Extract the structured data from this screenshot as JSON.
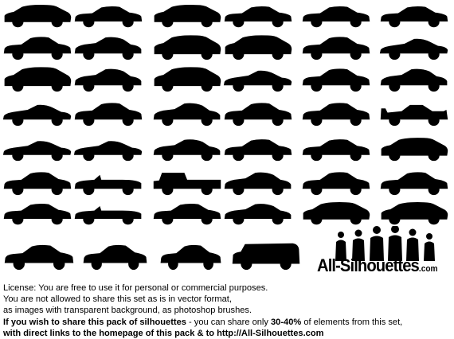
{
  "colors": {
    "silhouette": "#000000",
    "background": "#ffffff"
  },
  "silhouettes": {
    "subject": "car silhouettes",
    "rows": [
      [
        "hatchback-icon",
        "sedan-icon",
        "hatchback-icon",
        "sedan-icon",
        "sedan-icon",
        "sedan-icon"
      ],
      [
        "sedan-icon",
        "coupe-icon",
        "hatchback-icon",
        "hatchback-icon",
        "sedan-icon",
        "sports-car-icon"
      ],
      [
        "hatchback-icon",
        "coupe-icon",
        "hatchback-icon",
        "sports-car-icon",
        "sedan-icon",
        "coupe-icon"
      ],
      [
        "sports-car-icon",
        "sedan-icon",
        "coupe-icon",
        "sedan-icon",
        "sedan-icon",
        "race-car-icon"
      ],
      [
        "sports-car-icon",
        "sports-car-icon",
        "coupe-icon",
        "sedan-icon",
        "sedan-icon",
        "hatchback-icon"
      ],
      [
        "sedan-icon",
        "convertible-icon",
        "pickup-icon",
        "coupe-icon",
        "sedan-icon",
        "sedan-icon"
      ],
      [
        "sedan-icon",
        "convertible-icon",
        "sedan-icon",
        "coupe-icon",
        "hatchback-icon",
        "hatchback-icon"
      ],
      [
        "sedan-icon",
        "sedan-icon",
        "sedan-icon",
        "van-icon"
      ]
    ]
  },
  "logo": {
    "name": "All-Silhouettes",
    "suffix": ".com"
  },
  "license": {
    "line1": "License: You are free to use it for personal or commercial purposes.",
    "line2": "You are not allowed to share this set as is in vector format,",
    "line3": "as images with transparent background, as photoshop brushes.",
    "line4_bold": "If you wish to share this pack of silhouettes",
    "line4_normal": " - you can share only ",
    "line4_percent": "30-40%",
    "line4_end": " of elements from this set,",
    "line5": "with direct links to the homepage of this pack & to http://All-Silhouettes.com"
  }
}
